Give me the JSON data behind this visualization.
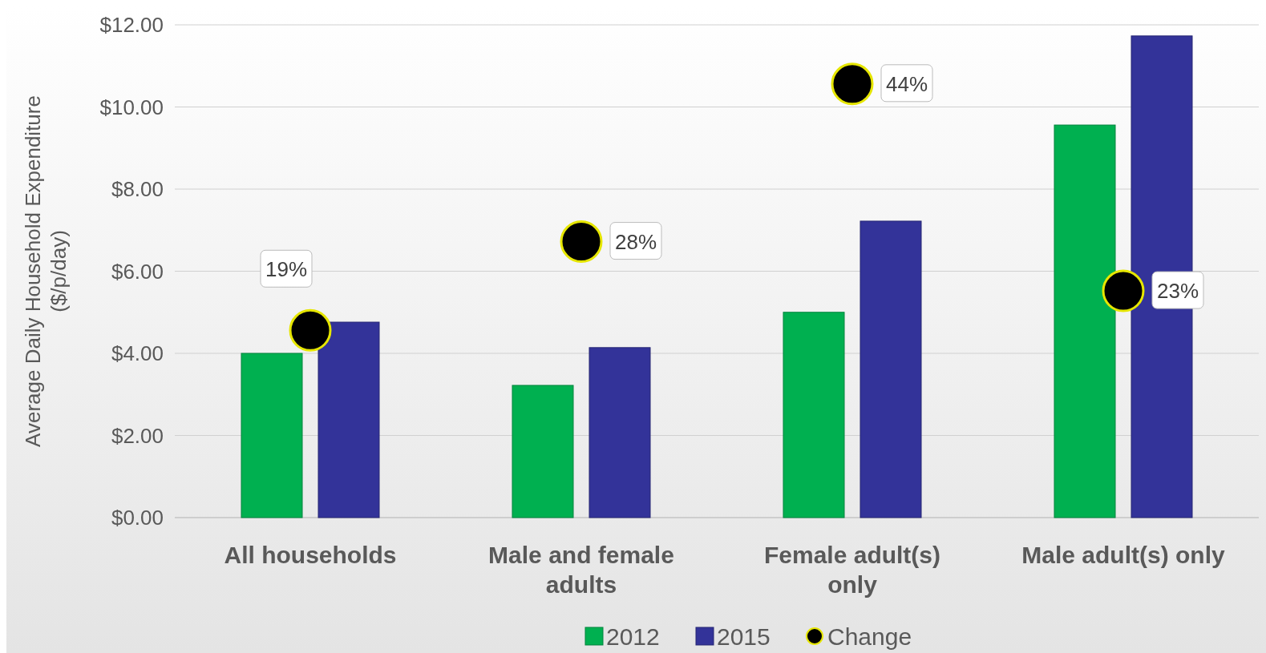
{
  "chart_data": {
    "type": "bar",
    "ylabel": "Average Daily Household Expenditure ($/p/day)",
    "categories": [
      "All households",
      "Male and female adults",
      "Female adult(s) only",
      "Male adult(s) only"
    ],
    "series": [
      {
        "name": "2012",
        "color": "#00b050",
        "values": [
          4.0,
          3.22,
          5.0,
          9.56
        ]
      },
      {
        "name": "2015",
        "color": "#333399",
        "values": [
          4.76,
          4.14,
          7.22,
          11.73
        ]
      },
      {
        "name": "Change",
        "type": "scatter",
        "axis": "y2",
        "color": "#000000",
        "x": [
          "All households",
          "Male and female adults",
          "Female adult(s) only",
          "Male adult(s) only"
        ],
        "values": [
          19,
          28,
          44,
          23
        ],
        "value_labels": [
          "19%",
          "28%",
          "44%",
          "23%"
        ]
      }
    ],
    "ylim": [
      0,
      12
    ],
    "yticks": [
      {
        "value": 0,
        "label": "$0.00"
      },
      {
        "value": 2,
        "label": "$2.00"
      },
      {
        "value": 4,
        "label": "$4.00"
      },
      {
        "value": 6,
        "label": "$6.00"
      },
      {
        "value": 8,
        "label": "$8.00"
      },
      {
        "value": 10,
        "label": "$10.00"
      },
      {
        "value": 12,
        "label": "$12.00"
      }
    ],
    "y2lim": [
      0,
      50
    ],
    "grid": "y",
    "legend": "bottom",
    "marker": "circle"
  }
}
